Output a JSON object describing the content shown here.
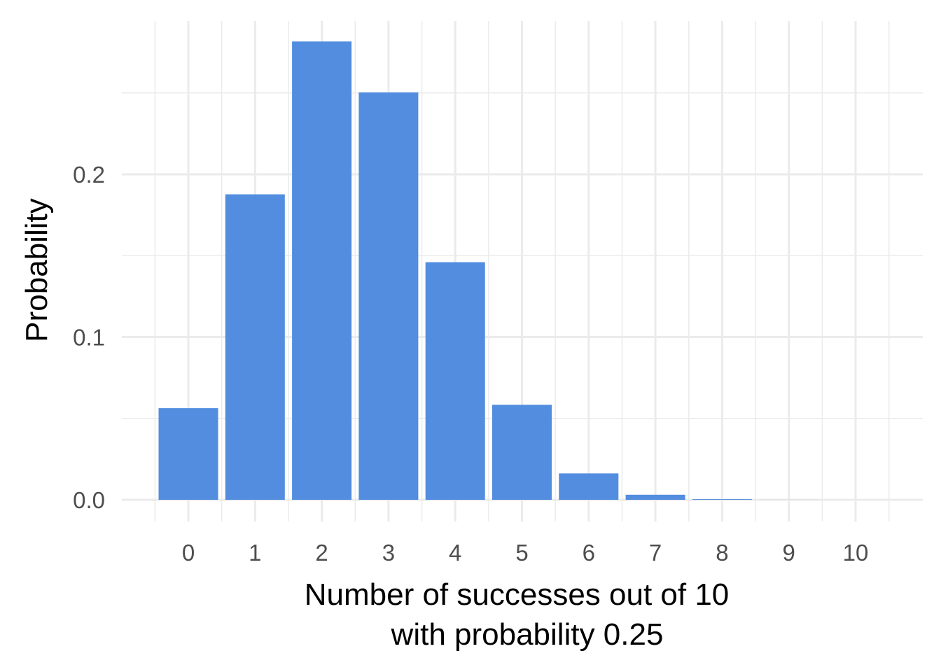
{
  "chart_data": {
    "type": "bar",
    "categories": [
      "0",
      "1",
      "2",
      "3",
      "4",
      "5",
      "6",
      "7",
      "8",
      "9",
      "10"
    ],
    "values": [
      0.0563,
      0.1877,
      0.2816,
      0.2503,
      0.146,
      0.0584,
      0.0162,
      0.0031,
      0.0004,
      3e-05,
      1e-06
    ],
    "xlabel_lines": [
      "Number of successes out of 10",
      "with probability 0.25"
    ],
    "ylabel": "Probability",
    "y_ticks": [
      0.0,
      0.1,
      0.2
    ],
    "y_tick_labels": [
      "0.0",
      "0.1",
      "0.2"
    ],
    "ylim": [
      -0.014,
      0.3
    ],
    "grid": true,
    "legend": "none",
    "bar_color": "#528ddf"
  }
}
